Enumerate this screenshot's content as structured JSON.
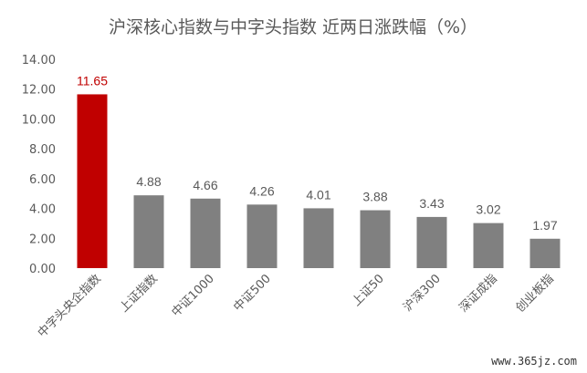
{
  "chart_data": {
    "type": "bar",
    "title": "沪深核心指数与中字头指数 近两日涨跌幅（%）",
    "categories": [
      "中字头央企指数",
      "上证指数",
      "中证1000",
      "中证500",
      "",
      "上证50",
      "沪深300",
      "深证成指",
      "创业板指"
    ],
    "values": [
      11.65,
      4.88,
      4.66,
      4.26,
      4.01,
      3.88,
      3.43,
      3.02,
      1.97
    ],
    "value_labels": [
      "11.65",
      "4.88",
      "4.66",
      "4.26",
      "4.01",
      "3.88",
      "3.43",
      "3.02",
      "1.97"
    ],
    "yticks": [
      "0.00",
      "2.00",
      "4.00",
      "6.00",
      "8.00",
      "10.00",
      "12.00",
      "14.00"
    ],
    "ylim": [
      0,
      14
    ],
    "grid": false,
    "legend": "none",
    "colors": {
      "highlight": "#c00000",
      "bar": "#808080",
      "highlight_label": "#c00000",
      "label": "#595959"
    }
  },
  "watermark": "www.365jz.com"
}
